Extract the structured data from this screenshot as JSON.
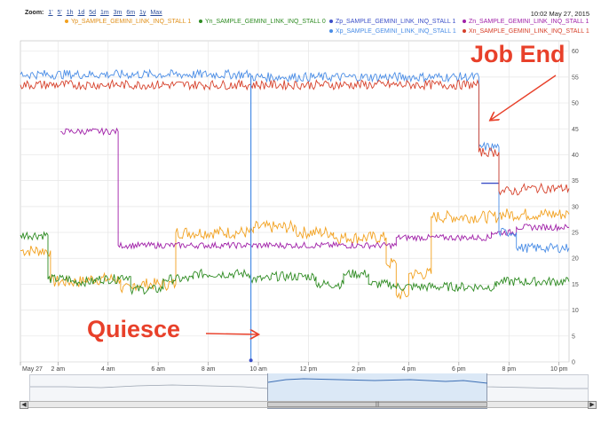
{
  "zoom": {
    "label": "Zoom:",
    "options": [
      "1'",
      "5'",
      "1h",
      "1d",
      "5d",
      "1m",
      "3m",
      "6m",
      "1y",
      "Max"
    ]
  },
  "timestamp": "10:02 May 27, 2015",
  "annotations": {
    "job_end": "Job End",
    "quiesce": "Quiesce"
  },
  "chart_data": {
    "type": "line",
    "title": "",
    "xlabel": "",
    "ylabel": "",
    "x_unit": "hour of day, May 27",
    "xlim": [
      0.5,
      22.4
    ],
    "ylim": [
      0,
      62
    ],
    "x_ticks": [
      {
        "x": 0.5,
        "label": "May 27"
      },
      {
        "x": 2,
        "label": "2 am"
      },
      {
        "x": 4,
        "label": "4 am"
      },
      {
        "x": 6,
        "label": "6 am"
      },
      {
        "x": 8,
        "label": "8 am"
      },
      {
        "x": 10,
        "label": "10 am"
      },
      {
        "x": 12,
        "label": "12 pm"
      },
      {
        "x": 14,
        "label": "2 pm"
      },
      {
        "x": 16,
        "label": "4 pm"
      },
      {
        "x": 18,
        "label": "6 pm"
      },
      {
        "x": 20,
        "label": "8 pm"
      },
      {
        "x": 22,
        "label": "10 pm"
      }
    ],
    "y_ticks": [
      0,
      5,
      10,
      15,
      20,
      25,
      30,
      35,
      40,
      45,
      50,
      55,
      60
    ],
    "grid": true,
    "legend_position": "top-right",
    "series": [
      {
        "name": "Yp_SAMPLE_GEMINI_LINK_INQ_STALL 1",
        "color": "#f2a11f",
        "noise": 1.2,
        "points": [
          [
            0.5,
            21.5
          ],
          [
            1.7,
            21.5
          ],
          [
            1.7,
            15.5
          ],
          [
            3.1,
            15.5
          ],
          [
            3.1,
            16
          ],
          [
            4.5,
            16
          ],
          [
            4.5,
            14
          ],
          [
            5,
            14
          ],
          [
            5,
            15
          ],
          [
            6.7,
            15
          ],
          [
            6.7,
            25
          ],
          [
            9.8,
            25
          ],
          [
            9.8,
            26
          ],
          [
            11.5,
            26
          ],
          [
            11.5,
            25
          ],
          [
            13,
            25
          ],
          [
            13,
            24
          ],
          [
            15.1,
            24
          ],
          [
            15.1,
            19
          ],
          [
            15.5,
            19
          ],
          [
            15.5,
            13
          ],
          [
            16,
            13
          ],
          [
            16,
            17
          ],
          [
            16.9,
            17
          ],
          [
            16.9,
            28
          ],
          [
            19.6,
            28
          ],
          [
            19.6,
            28.5
          ],
          [
            22.4,
            28.5
          ]
        ]
      },
      {
        "name": "Yn_SAMPLE_GEMINI_LINK_INQ_STALL 0",
        "color": "#2e8b22",
        "noise": 0.9,
        "points": [
          [
            0.5,
            24.5
          ],
          [
            1.6,
            24.5
          ],
          [
            1.6,
            16
          ],
          [
            2.5,
            16
          ],
          [
            2.5,
            15.5
          ],
          [
            3.5,
            15.5
          ],
          [
            3.5,
            16
          ],
          [
            4.4,
            16
          ],
          [
            4.4,
            16.5
          ],
          [
            4.9,
            16.5
          ],
          [
            4.9,
            14
          ],
          [
            6.2,
            14
          ],
          [
            6.2,
            16
          ],
          [
            7.4,
            16
          ],
          [
            7.4,
            17
          ],
          [
            9.7,
            17
          ],
          [
            9.7,
            16
          ],
          [
            10.5,
            16
          ],
          [
            10.5,
            16.5
          ],
          [
            12.3,
            16.5
          ],
          [
            12.3,
            15
          ],
          [
            13.4,
            15
          ],
          [
            13.4,
            17
          ],
          [
            14.4,
            17
          ],
          [
            14.4,
            15
          ],
          [
            15.4,
            15
          ],
          [
            15.4,
            14.5
          ],
          [
            19.5,
            14.5
          ],
          [
            19.5,
            15.5
          ],
          [
            22.4,
            15.5
          ]
        ]
      },
      {
        "name": "Zp_SAMPLE_GEMINI_LINK_INQ_STALL 1",
        "color": "#3b4fc8",
        "noise": 0,
        "points": [
          [
            18.9,
            34.5
          ],
          [
            19.6,
            34.5
          ]
        ]
      },
      {
        "name": "Zn_SAMPLE_GEMINI_LINK_INQ_STALL 1",
        "color": "#a020a8",
        "noise": 0.6,
        "points": [
          [
            2.1,
            44.5
          ],
          [
            4.4,
            44.5
          ],
          [
            4.4,
            22.5
          ],
          [
            9.7,
            22.5
          ],
          [
            9.7,
            22.5
          ],
          [
            15.5,
            22.5
          ],
          [
            15.5,
            24
          ],
          [
            19.3,
            24
          ],
          [
            19.3,
            25
          ],
          [
            20.3,
            25
          ],
          [
            20.3,
            26
          ],
          [
            22.4,
            26
          ]
        ]
      },
      {
        "name": "Xp_SAMPLE_GEMINI_LINK_INQ_STALL 1",
        "color": "#4a8de6",
        "noise": 0.9,
        "points": [
          [
            0.5,
            55.5
          ],
          [
            9.7,
            55.5
          ],
          [
            9.7,
            55
          ],
          [
            18.8,
            55
          ],
          [
            18.8,
            41.5
          ],
          [
            19.6,
            41.5
          ],
          [
            19.6,
            25
          ],
          [
            20.3,
            25
          ],
          [
            20.3,
            22
          ],
          [
            22.4,
            22
          ]
        ]
      },
      {
        "name": "Xn_SAMPLE_GEMINI_LINK_INQ_STALL 1",
        "color": "#d6402a",
        "noise": 0.9,
        "points": [
          [
            0.5,
            53.5
          ],
          [
            18.8,
            53.5
          ],
          [
            18.8,
            40.5
          ],
          [
            19.6,
            40.5
          ],
          [
            19.6,
            33
          ],
          [
            20.5,
            33
          ],
          [
            20.5,
            33.5
          ],
          [
            22.4,
            33.5
          ]
        ]
      }
    ]
  }
}
